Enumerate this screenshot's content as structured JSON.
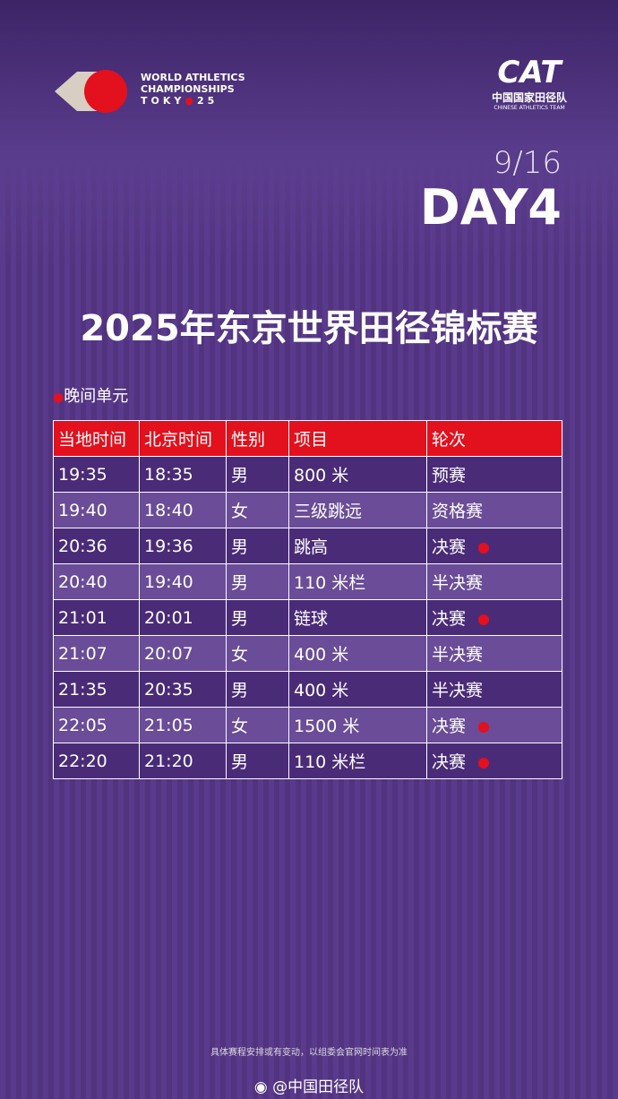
{
  "header": {
    "event_logo": {
      "line1": "WORLD ATHLETICS",
      "line2": "CHAMPIONSHIPS",
      "line3": "TOKY",
      "line4": "25"
    },
    "team_logo": {
      "mark": "CAT",
      "name": "中国国家田径队",
      "name_en": "CHINESE ATHLETICS TEAM"
    },
    "date": "9/16",
    "day": "DAY4"
  },
  "title": "2025年东京世界田径锦标赛",
  "session": "晚间单元",
  "table": {
    "columns": [
      "当地时间",
      "北京时间",
      "性别",
      "项目",
      "轮次"
    ],
    "rows": [
      [
        "19:35",
        "18:35",
        "男",
        "800 米",
        "预赛"
      ],
      [
        "19:40",
        "18:40",
        "女",
        "三级跳远",
        "资格赛"
      ],
      [
        "20:36",
        "19:36",
        "男",
        "跳高",
        "决赛"
      ],
      [
        "20:40",
        "19:40",
        "男",
        "110 米栏",
        "半决赛"
      ],
      [
        "21:01",
        "20:01",
        "男",
        "链球",
        "决赛"
      ],
      [
        "21:07",
        "20:07",
        "女",
        "400 米",
        "半决赛"
      ],
      [
        "21:35",
        "20:35",
        "男",
        "400 米",
        "半决赛"
      ],
      [
        "22:05",
        "21:05",
        "女",
        "1500 米",
        "决赛"
      ],
      [
        "22:20",
        "21:20",
        "男",
        "110 米栏",
        "决赛"
      ]
    ]
  },
  "footer": {
    "note": "具体赛程安排或有变动，以组委会官网时间表为准",
    "account": "@中国田径队"
  }
}
